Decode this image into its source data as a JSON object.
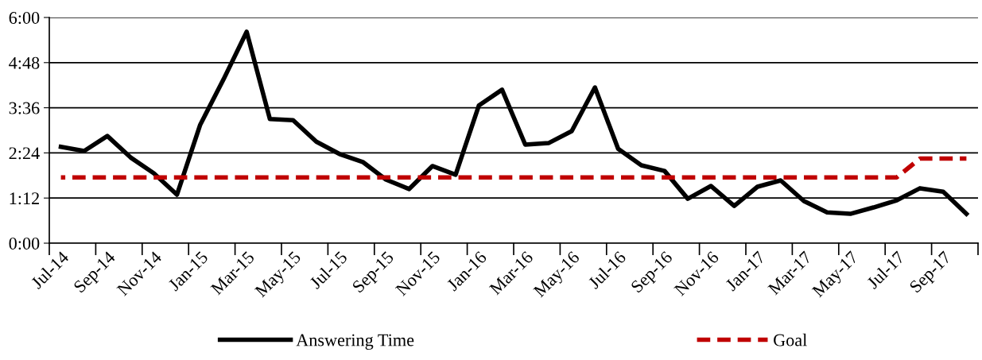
{
  "chart_data": {
    "type": "line",
    "categories": [
      "Jul-14",
      null,
      "Sep-14",
      null,
      "Nov-14",
      null,
      "Jan-15",
      null,
      "Mar-15",
      null,
      "May-15",
      null,
      "Jul-15",
      null,
      "Sep-15",
      null,
      "Nov-15",
      null,
      "Jan-16",
      null,
      "Mar-16",
      null,
      "May-16",
      null,
      "Jul-16",
      null,
      "Sep-16",
      null,
      "Nov-16",
      null,
      "Jan-17",
      null,
      "Mar-17",
      null,
      "May-17",
      null,
      "Jul-17",
      null,
      "Sep-17",
      null
    ],
    "series": [
      {
        "name": "Answering Time",
        "color": "#000000",
        "line_style": "solid",
        "values": [
          2.56,
          2.45,
          2.85,
          2.28,
          1.86,
          1.29,
          3.15,
          4.35,
          5.62,
          3.3,
          3.27,
          2.7,
          2.37,
          2.16,
          1.69,
          1.44,
          2.05,
          1.82,
          3.66,
          4.08,
          2.62,
          2.66,
          2.98,
          4.14,
          2.51,
          2.07,
          1.92,
          1.18,
          1.52,
          0.99,
          1.5,
          1.67,
          1.12,
          0.82,
          0.78,
          0.95,
          1.14,
          1.46,
          1.37,
          0.78
        ]
      },
      {
        "name": "Goal",
        "color": "#c00000",
        "line_style": "dashed",
        "values": [
          1.75,
          1.75,
          1.75,
          1.75,
          1.75,
          1.75,
          1.75,
          1.75,
          1.75,
          1.75,
          1.75,
          1.75,
          1.75,
          1.75,
          1.75,
          1.75,
          1.75,
          1.75,
          1.75,
          1.75,
          1.75,
          1.75,
          1.75,
          1.75,
          1.75,
          1.75,
          1.75,
          1.75,
          1.75,
          1.75,
          1.75,
          1.75,
          1.75,
          1.75,
          1.75,
          1.75,
          1.75,
          2.25,
          2.25,
          2.25
        ]
      }
    ],
    "ylim": [
      0,
      6
    ],
    "yticks": [
      {
        "value": 0,
        "label": "0:00"
      },
      {
        "value": 1.2,
        "label": "1:12"
      },
      {
        "value": 2.4,
        "label": "2:24"
      },
      {
        "value": 3.6,
        "label": "3:36"
      },
      {
        "value": 4.8,
        "label": "4:48"
      },
      {
        "value": 6,
        "label": "6:00"
      }
    ],
    "grid": "y",
    "legend": "bottom",
    "marker": "none"
  }
}
